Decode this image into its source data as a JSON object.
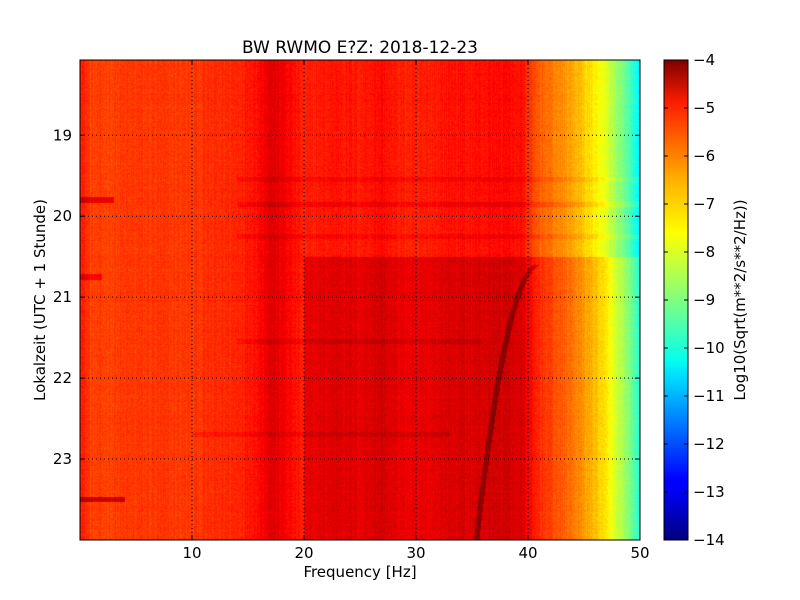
{
  "chart_data": {
    "type": "heatmap",
    "title": "BW RWMO E?Z: 2018-12-23",
    "xlabel": "Frequency [Hz]",
    "ylabel": "Lokalzeit (UTC + 1 Stunde)",
    "xlim": [
      0,
      50
    ],
    "ylim_hours": [
      24.0,
      18.07
    ],
    "x_ticks": [
      10,
      20,
      30,
      40,
      50
    ],
    "y_ticks": [
      19,
      20,
      21,
      22,
      23
    ],
    "grid": true,
    "colormap": "jet",
    "colorbar": {
      "label": "Log10(Sqrt(m**2/s**2/Hz))",
      "range": [
        -14,
        -4
      ],
      "ticks": [
        -4,
        -5,
        -6,
        -7,
        -8,
        -9,
        -10,
        -11,
        -12,
        -13,
        -14
      ]
    },
    "spectrum_profile": {
      "frequency_hz": [
        0,
        1,
        5,
        10,
        14,
        16,
        17,
        18,
        20,
        23,
        25,
        27,
        28,
        30,
        33,
        35,
        38,
        39.5,
        40.5,
        42,
        44,
        46,
        47,
        48,
        49,
        50
      ],
      "level_log10": [
        -5.4,
        -5.9,
        -5.8,
        -5.8,
        -5.6,
        -5.3,
        -4.9,
        -5.1,
        -5.6,
        -5.4,
        -5.5,
        -5.3,
        -5.5,
        -5.6,
        -5.4,
        -5.4,
        -5.3,
        -5.4,
        -6.0,
        -6.4,
        -6.9,
        -7.6,
        -8.1,
        -8.8,
        -9.5,
        -10.4
      ]
    },
    "features": [
      {
        "kind": "level_step",
        "time_hours": 20.5,
        "freq_range_hz": [
          20,
          50
        ],
        "delta_log10": 0.5,
        "applies": "after"
      },
      {
        "kind": "horizontal_band",
        "time_hours": 19.55,
        "freq_range_hz": [
          14,
          50
        ],
        "delta_log10": 0.22
      },
      {
        "kind": "horizontal_band",
        "time_hours": 19.85,
        "freq_range_hz": [
          14,
          50
        ],
        "delta_log10": 0.28
      },
      {
        "kind": "horizontal_band",
        "time_hours": 20.25,
        "freq_range_hz": [
          14,
          50
        ],
        "delta_log10": 0.2
      },
      {
        "kind": "horizontal_band",
        "time_hours": 21.55,
        "freq_range_hz": [
          14,
          36
        ],
        "delta_log10": 0.22
      },
      {
        "kind": "horizontal_band",
        "time_hours": 22.7,
        "freq_range_hz": [
          10,
          33
        ],
        "delta_log10": 0.22
      },
      {
        "kind": "short_burst",
        "time_hours": 19.8,
        "freq_range_hz": [
          0,
          3
        ],
        "delta_log10": 0.8
      },
      {
        "kind": "short_burst",
        "time_hours": 23.5,
        "freq_range_hz": [
          0,
          4
        ],
        "delta_log10": 1.1
      },
      {
        "kind": "short_burst",
        "time_hours": 20.75,
        "freq_range_hz": [
          0,
          2
        ],
        "delta_log10": 0.6
      },
      {
        "kind": "gliding_line",
        "time_range_hours": [
          20.6,
          24.0
        ],
        "freq_start_hz": 41.0,
        "freq_end_hz": 35.4,
        "delta_log10": 0.7
      }
    ]
  }
}
